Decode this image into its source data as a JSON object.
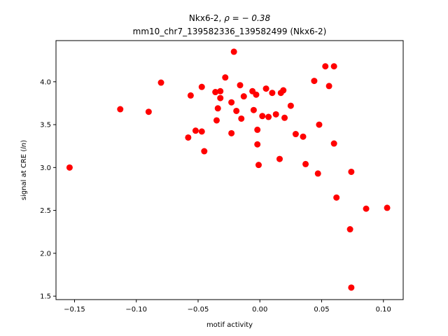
{
  "chart_data": {
    "type": "scatter",
    "title_line1_prefix": "Nkx6-2, ",
    "title_line1_rho": "ρ = − 0.38",
    "title_line2": "mm10_chr7_139582336_139582499 (Nkx6-2)",
    "xlabel": "motif activity",
    "ylabel_prefix": "signal at CRE (",
    "ylabel_italic": "ln",
    "ylabel_suffix": ")",
    "xlim": [
      -0.165,
      0.116
    ],
    "ylim": [
      1.46,
      4.48
    ],
    "xticks": [
      -0.15,
      -0.1,
      -0.05,
      0.0,
      0.05,
      0.1
    ],
    "xtick_labels": [
      "−0.15",
      "−0.10",
      "−0.05",
      "0.00",
      "0.05",
      "0.10"
    ],
    "yticks": [
      1.5,
      2.0,
      2.5,
      3.0,
      3.5,
      4.0
    ],
    "ytick_labels": [
      "1.5",
      "2.0",
      "2.5",
      "3.0",
      "3.5",
      "4.0"
    ],
    "grid": false,
    "marker_color": "#ff0000",
    "points": [
      {
        "x": -0.154,
        "y": 3.0
      },
      {
        "x": -0.113,
        "y": 3.68
      },
      {
        "x": -0.09,
        "y": 3.65
      },
      {
        "x": -0.08,
        "y": 3.99
      },
      {
        "x": -0.058,
        "y": 3.35
      },
      {
        "x": -0.056,
        "y": 3.84
      },
      {
        "x": -0.052,
        "y": 3.43
      },
      {
        "x": -0.047,
        "y": 3.94
      },
      {
        "x": -0.047,
        "y": 3.42
      },
      {
        "x": -0.045,
        "y": 3.19
      },
      {
        "x": -0.036,
        "y": 3.88
      },
      {
        "x": -0.035,
        "y": 3.55
      },
      {
        "x": -0.034,
        "y": 3.69
      },
      {
        "x": -0.032,
        "y": 3.81
      },
      {
        "x": -0.032,
        "y": 3.89
      },
      {
        "x": -0.028,
        "y": 4.05
      },
      {
        "x": -0.023,
        "y": 3.76
      },
      {
        "x": -0.023,
        "y": 3.4
      },
      {
        "x": -0.021,
        "y": 4.35
      },
      {
        "x": -0.019,
        "y": 3.66
      },
      {
        "x": -0.016,
        "y": 3.96
      },
      {
        "x": -0.015,
        "y": 3.57
      },
      {
        "x": -0.013,
        "y": 3.83
      },
      {
        "x": -0.006,
        "y": 3.89
      },
      {
        "x": -0.005,
        "y": 3.67
      },
      {
        "x": -0.003,
        "y": 3.85
      },
      {
        "x": -0.002,
        "y": 3.44
      },
      {
        "x": -0.002,
        "y": 3.27
      },
      {
        "x": -0.001,
        "y": 3.03
      },
      {
        "x": 0.002,
        "y": 3.6
      },
      {
        "x": 0.005,
        "y": 3.92
      },
      {
        "x": 0.007,
        "y": 3.59
      },
      {
        "x": 0.01,
        "y": 3.87
      },
      {
        "x": 0.013,
        "y": 3.62
      },
      {
        "x": 0.016,
        "y": 3.1
      },
      {
        "x": 0.017,
        "y": 3.87
      },
      {
        "x": 0.019,
        "y": 3.9
      },
      {
        "x": 0.02,
        "y": 3.58
      },
      {
        "x": 0.025,
        "y": 3.72
      },
      {
        "x": 0.029,
        "y": 3.39
      },
      {
        "x": 0.035,
        "y": 3.36
      },
      {
        "x": 0.037,
        "y": 3.04
      },
      {
        "x": 0.044,
        "y": 4.01
      },
      {
        "x": 0.047,
        "y": 2.93
      },
      {
        "x": 0.048,
        "y": 3.5
      },
      {
        "x": 0.053,
        "y": 4.18
      },
      {
        "x": 0.056,
        "y": 3.95
      },
      {
        "x": 0.06,
        "y": 4.18
      },
      {
        "x": 0.06,
        "y": 3.28
      },
      {
        "x": 0.062,
        "y": 2.65
      },
      {
        "x": 0.073,
        "y": 2.28
      },
      {
        "x": 0.074,
        "y": 2.95
      },
      {
        "x": 0.074,
        "y": 1.6
      },
      {
        "x": 0.086,
        "y": 2.52
      },
      {
        "x": 0.103,
        "y": 2.53
      }
    ]
  }
}
